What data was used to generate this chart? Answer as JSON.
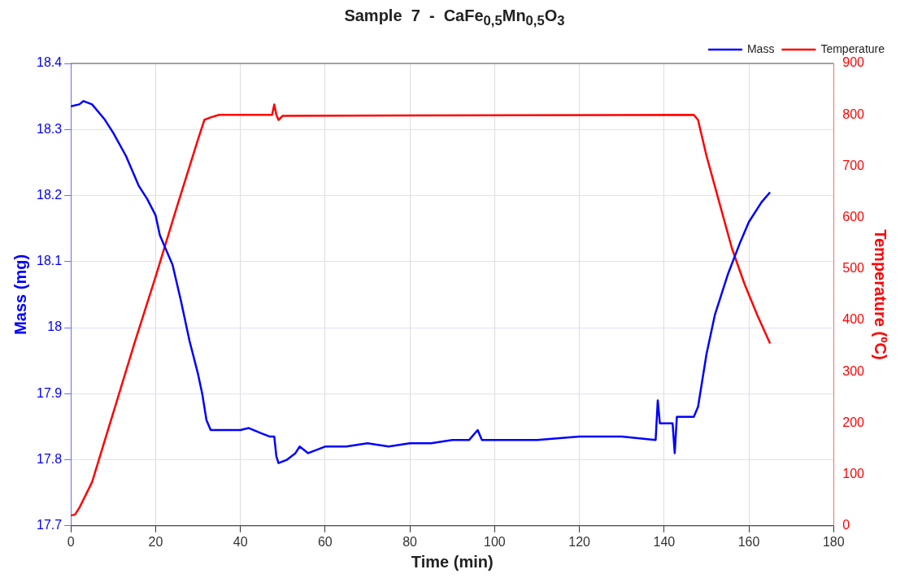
{
  "chart_data": {
    "type": "line",
    "title": "Sample  7  -  CaFe$_{0,5}$Mn$_{0,5}$O$_{3}$",
    "xlabel": "Time (min)",
    "ylabel": "Mass (mg)",
    "y2label": "Temperature (ºC)",
    "xlim": [
      0,
      180
    ],
    "xticks": [
      0,
      20,
      40,
      60,
      80,
      100,
      120,
      140,
      160,
      180
    ],
    "ylim": [
      17.7,
      18.4
    ],
    "yticks": [
      17.7,
      17.8,
      17.9,
      18,
      18.1,
      18.2,
      18.3,
      18.4
    ],
    "y2lim": [
      0,
      900
    ],
    "y2ticks": [
      0,
      100,
      200,
      300,
      400,
      500,
      600,
      700,
      800,
      900
    ],
    "grid": true,
    "legend": "top right",
    "marker": "none",
    "line_style": "solid",
    "series": [
      {
        "name": "Mass",
        "color": "#0000ff",
        "x": [
          0,
          2,
          3,
          5,
          8,
          10,
          13,
          16,
          18,
          20,
          21,
          22,
          24,
          26,
          28,
          30,
          31,
          32,
          33,
          36,
          40,
          42,
          45,
          47,
          48,
          48.5,
          49,
          51,
          53,
          54,
          56,
          60,
          65,
          70,
          75,
          80,
          85,
          90,
          94,
          96,
          97,
          100,
          110,
          120,
          130,
          138,
          138.5,
          139,
          142,
          142.5,
          143,
          147,
          148,
          150,
          152,
          155,
          158,
          160,
          163,
          165
        ],
        "values": [
          18.335,
          18.338,
          18.343,
          18.338,
          18.315,
          18.295,
          18.26,
          18.215,
          18.195,
          18.17,
          18.14,
          18.125,
          18.095,
          18.04,
          17.98,
          17.93,
          17.9,
          17.86,
          17.845,
          17.845,
          17.845,
          17.848,
          17.84,
          17.835,
          17.835,
          17.805,
          17.795,
          17.8,
          17.81,
          17.82,
          17.81,
          17.82,
          17.82,
          17.825,
          17.82,
          17.825,
          17.825,
          17.83,
          17.83,
          17.845,
          17.83,
          17.83,
          17.83,
          17.835,
          17.835,
          17.83,
          17.89,
          17.855,
          17.855,
          17.81,
          17.865,
          17.865,
          17.88,
          17.96,
          18.02,
          18.08,
          18.13,
          18.16,
          18.19,
          18.205
        ]
      },
      {
        "name": "Temperature",
        "color": "#ff0000",
        "axis": "y2",
        "x": [
          0,
          1,
          2,
          5,
          10,
          15,
          20,
          25,
          30,
          31.5,
          33,
          35,
          47.5,
          48,
          48.5,
          49,
          50,
          147,
          148,
          150,
          153,
          156,
          159,
          162,
          165
        ],
        "values": [
          20,
          22,
          35,
          85,
          220,
          355,
          485,
          620,
          752,
          790,
          795,
          800,
          800,
          820,
          800,
          790,
          798,
          800,
          790,
          720,
          630,
          540,
          470,
          410,
          355
        ]
      }
    ]
  }
}
